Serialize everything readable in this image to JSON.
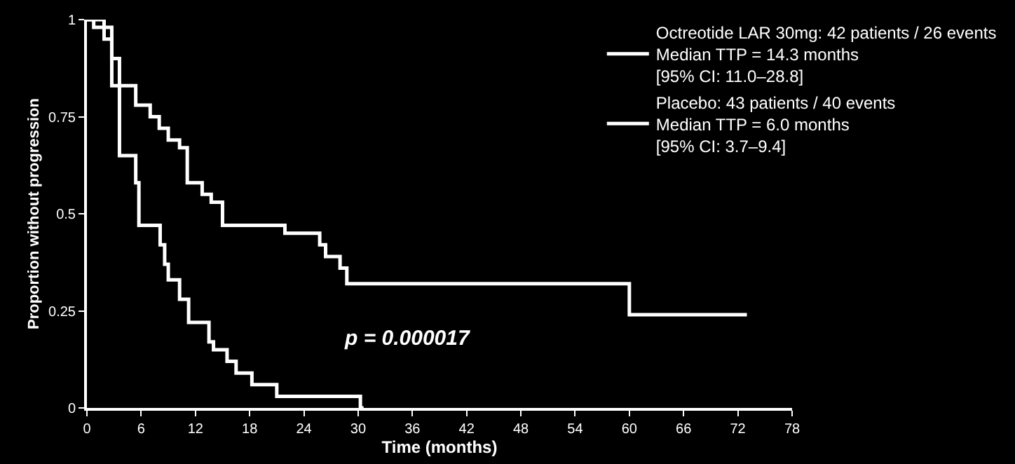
{
  "chart_data": {
    "type": "step",
    "xlabel": "Time (months)",
    "ylabel": "Proportion without progression",
    "series": [
      {
        "name": "Octreotide LAR 30mg: 42 patients / 26 events\nMedian TTP = 14.3 months\n[95% CI: 11.0–28.8]",
        "color": "#ffffff",
        "x": [
          0,
          1.9,
          2.75,
          3.6,
          5.4,
          7.0,
          8.0,
          9.0,
          10.25,
          11.1,
          12.75,
          13.75,
          15,
          21.9,
          25.75,
          26.4,
          28,
          28.75,
          60,
          73
        ],
        "values": [
          1.0,
          0.95,
          0.83,
          0.83,
          0.78,
          0.75,
          0.72,
          0.69,
          0.67,
          0.58,
          0.55,
          0.53,
          0.47,
          0.45,
          0.42,
          0.39,
          0.36,
          0.32,
          0.24,
          0.24
        ]
      },
      {
        "name": "Placebo: 43 patients / 40 events\nMedian TTP = 6.0 months\n[95% CI: 3.7–9.4]",
        "color": "#ffffff",
        "x": [
          0,
          0.75,
          2.75,
          3.6,
          5.4,
          5.75,
          8.1,
          8.6,
          9.0,
          10.25,
          11.25,
          13.5,
          14,
          15.5,
          16.5,
          18.25,
          21,
          30.25,
          30.6
        ],
        "values": [
          1.0,
          0.98,
          0.9,
          0.65,
          0.58,
          0.47,
          0.42,
          0.37,
          0.33,
          0.28,
          0.22,
          0.17,
          0.15,
          0.12,
          0.09,
          0.06,
          0.03,
          0.0,
          0.0
        ]
      }
    ],
    "xlim": [
      0,
      78
    ],
    "xticks": [
      0,
      6,
      12,
      18,
      24,
      30,
      36,
      42,
      48,
      54,
      60,
      66,
      72,
      78
    ],
    "ylim": [
      0,
      1
    ],
    "yticks": [
      0,
      0.25,
      0.5,
      0.75,
      1
    ],
    "annotations": [
      "p = 0.000017"
    ],
    "legend": "top right",
    "grid": false,
    "marker": "none",
    "line_style": "solid"
  }
}
